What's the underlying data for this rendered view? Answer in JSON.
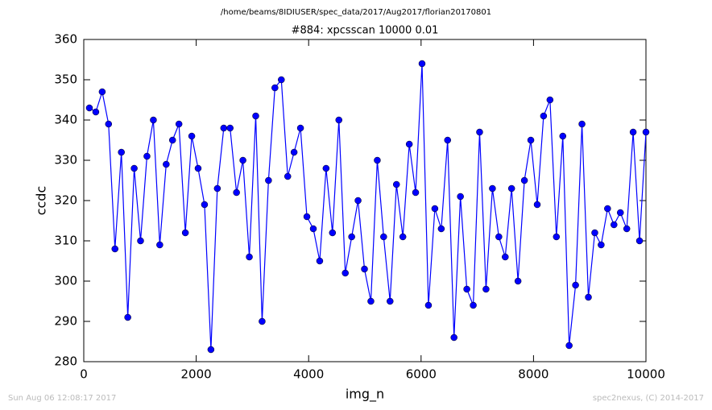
{
  "chart_data": {
    "type": "line",
    "suptitle": "/home/beams/8IDIUSER/spec_data/2017/Aug2017/florian20170801",
    "title": "#884: xpcsscan 10000 0.01",
    "xlabel": "img_n",
    "ylabel": "ccdc",
    "x": [
      100,
      214,
      328,
      441,
      555,
      669,
      783,
      897,
      1010,
      1124,
      1238,
      1352,
      1466,
      1579,
      1693,
      1807,
      1921,
      2034,
      2148,
      2262,
      2376,
      2490,
      2603,
      2717,
      2831,
      2945,
      3059,
      3172,
      3286,
      3400,
      3514,
      3628,
      3741,
      3855,
      3969,
      4083,
      4197,
      4310,
      4424,
      4538,
      4652,
      4766,
      4879,
      4993,
      5107,
      5221,
      5334,
      5448,
      5562,
      5676,
      5790,
      5903,
      6017,
      6131,
      6245,
      6359,
      6472,
      6586,
      6700,
      6814,
      6928,
      7041,
      7155,
      7269,
      7383,
      7497,
      7610,
      7724,
      7838,
      7952,
      8066,
      8179,
      8293,
      8407,
      8521,
      8634,
      8748,
      8862,
      8976,
      9090,
      9203,
      9317,
      9431,
      9545,
      9659,
      9772,
      9886,
      10000
    ],
    "values": [
      343,
      342,
      347,
      339,
      308,
      332,
      291,
      328,
      310,
      331,
      340,
      309,
      329,
      335,
      339,
      312,
      336,
      328,
      319,
      283,
      323,
      338,
      338,
      322,
      330,
      306,
      341,
      290,
      325,
      348,
      350,
      326,
      332,
      338,
      316,
      313,
      305,
      328,
      312,
      340,
      302,
      311,
      320,
      303,
      295,
      330,
      311,
      295,
      324,
      311,
      334,
      322,
      354,
      294,
      318,
      313,
      335,
      286,
      321,
      298,
      294,
      337,
      298,
      323,
      311,
      306,
      323,
      300,
      325,
      335,
      319,
      341,
      345,
      311,
      336,
      284,
      299,
      339,
      296,
      312,
      309,
      318,
      314,
      317,
      313,
      337,
      310,
      337
    ],
    "color": "#0000ff",
    "marker": "o",
    "xlim": [
      0,
      10000
    ],
    "xticks": [
      0,
      2000,
      4000,
      6000,
      8000,
      10000
    ],
    "ylim": [
      280,
      360
    ],
    "yticks": [
      280,
      290,
      300,
      310,
      320,
      330,
      340,
      350,
      360
    ],
    "grid": false
  },
  "footer_left": "Sun Aug 06 12:08:17 2017",
  "footer_right": "spec2nexus, (C) 2014-2017"
}
